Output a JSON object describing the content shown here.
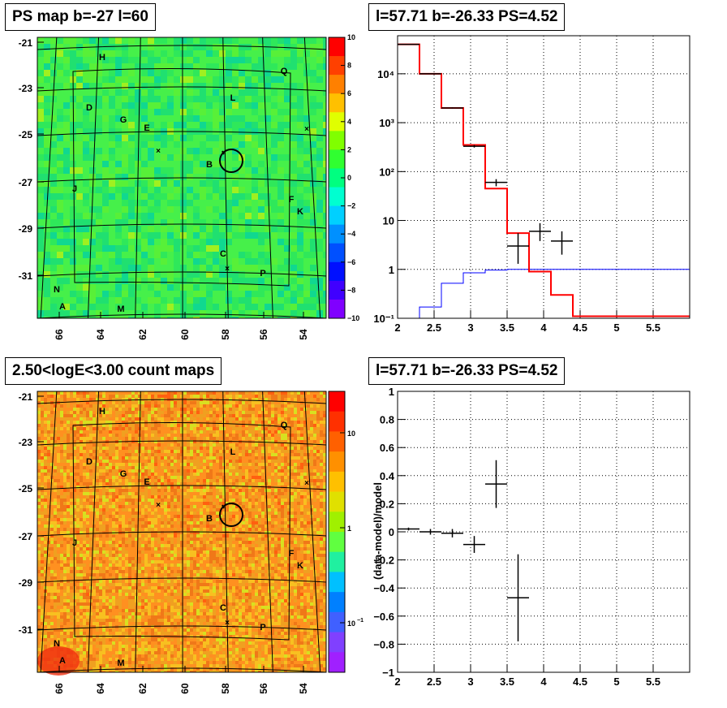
{
  "titles": {
    "ps_map": "PS map b=-27 l=60",
    "spectrum": "l=57.71 b=-26.33 PS=4.52",
    "count_maps": "2.50<logE<3.00 count maps",
    "residuals": "l=57.71 b=-26.33 PS=4.52"
  },
  "map_axes": {
    "y_ticks": [
      "-21",
      "-23",
      "-25",
      "-27",
      "-29",
      "-31"
    ],
    "x_ticks": [
      "66",
      "64",
      "62",
      "60",
      "58",
      "56",
      "54"
    ]
  },
  "source_labels": [
    "H",
    "Q",
    "L",
    "D",
    "G",
    "E",
    "B",
    "J",
    "F",
    "K",
    "C",
    "P",
    "N",
    "A",
    "M"
  ],
  "ps_colorbar": {
    "ticks": [
      "10",
      "8",
      "6",
      "4",
      "2",
      "0",
      "−2",
      "−4",
      "−6",
      "−8",
      "−10"
    ]
  },
  "count_colorbar": {
    "ticks": [
      "10",
      "1",
      "10",
      "−1"
    ]
  },
  "colors": {
    "ps_map_bg": "#2fe85a",
    "count_map_bg": "#f0a020",
    "model_line": "#ff0000",
    "background_line": "#0000ff",
    "data": "#000000"
  },
  "chart_data": [
    {
      "type": "line",
      "name": "spectrum",
      "log_y": true,
      "xlim": [
        2,
        6
      ],
      "ylim": [
        0.1,
        60000
      ],
      "x_ticks": [
        "2",
        "2.5",
        "3",
        "3.5",
        "4",
        "4.5",
        "5",
        "5.5"
      ],
      "y_ticks": [
        "10⁻¹",
        "1",
        "10",
        "10²",
        "10³",
        "10⁴"
      ],
      "grid": true,
      "model_steps": {
        "edges": [
          2,
          2.3,
          2.6,
          2.9,
          3.2,
          3.5,
          3.8,
          4.1,
          4.4,
          6
        ],
        "values": [
          40000,
          10000,
          2000,
          350,
          45,
          5.5,
          0.9,
          0.3,
          0.11
        ]
      },
      "background_steps": {
        "edges": [
          2.3,
          2.6,
          2.9,
          3.2,
          3.5,
          6
        ],
        "values": [
          0.17,
          0.52,
          0.85,
          0.97,
          1.0
        ]
      },
      "data_points": [
        {
          "x": 2.15,
          "y": 40000,
          "xerr": 0.15,
          "ylo": 39500,
          "yhi": 40500
        },
        {
          "x": 2.45,
          "y": 10000,
          "xerr": 0.15,
          "ylo": 9900,
          "yhi": 10100
        },
        {
          "x": 2.75,
          "y": 2000,
          "xerr": 0.15,
          "ylo": 1950,
          "yhi": 2050
        },
        {
          "x": 3.05,
          "y": 330,
          "xerr": 0.15,
          "ylo": 310,
          "yhi": 350
        },
        {
          "x": 3.35,
          "y": 60,
          "xerr": 0.15,
          "ylo": 50,
          "yhi": 70
        },
        {
          "x": 3.65,
          "y": 3.0,
          "xerr": 0.15,
          "ylo": 1.3,
          "yhi": 5.5
        },
        {
          "x": 3.95,
          "y": 6.0,
          "xerr": 0.15,
          "ylo": 3.8,
          "yhi": 8.8
        },
        {
          "x": 4.25,
          "y": 3.8,
          "xerr": 0.15,
          "ylo": 2.0,
          "yhi": 6.0
        }
      ]
    },
    {
      "type": "scatter",
      "name": "residuals",
      "xlim": [
        2,
        6
      ],
      "ylim": [
        -1,
        1
      ],
      "x_ticks": [
        "2",
        "2.5",
        "3",
        "3.5",
        "4",
        "4.5",
        "5",
        "5.5"
      ],
      "y_ticks": [
        "1",
        "0.8",
        "0.6",
        "0.4",
        "0.2",
        "0",
        "−0.2",
        "−0.4",
        "−0.6",
        "−0.8",
        "−1"
      ],
      "ylabel": "(data-model)/model",
      "grid": true,
      "data_points": [
        {
          "x": 2.15,
          "y": 0.02,
          "xerr": 0.15,
          "yerr": 0.01
        },
        {
          "x": 2.45,
          "y": 0.0,
          "xerr": 0.15,
          "yerr": 0.02
        },
        {
          "x": 2.75,
          "y": -0.01,
          "xerr": 0.15,
          "yerr": 0.03
        },
        {
          "x": 3.05,
          "y": -0.09,
          "xerr": 0.15,
          "yerr": 0.06
        },
        {
          "x": 3.35,
          "y": 0.34,
          "xerr": 0.15,
          "yerr": 0.17
        },
        {
          "x": 3.65,
          "y": -0.47,
          "xerr": 0.15,
          "yerr": 0.31
        }
      ]
    }
  ]
}
